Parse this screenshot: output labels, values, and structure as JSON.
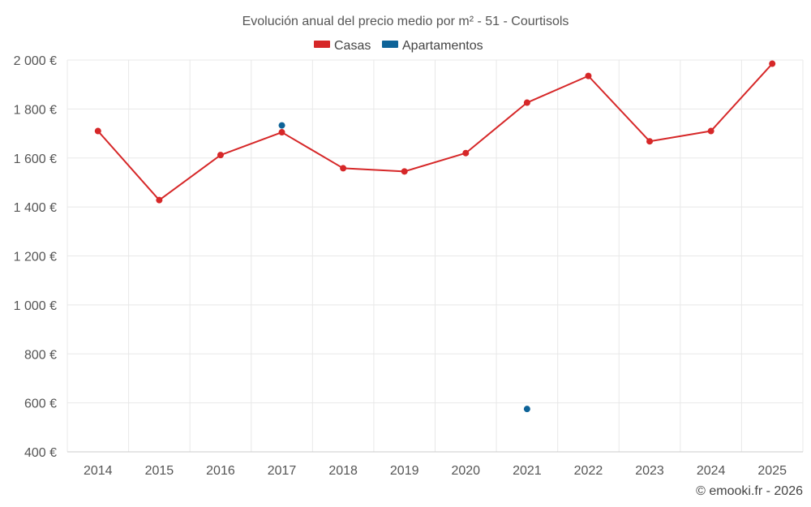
{
  "chart_data": {
    "type": "line",
    "title": "Evolución anual del precio medio por m² - 51 - Courtisols",
    "categories": [
      "2014",
      "2015",
      "2016",
      "2017",
      "2018",
      "2019",
      "2020",
      "2021",
      "2022",
      "2023",
      "2024",
      "2025"
    ],
    "series": [
      {
        "name": "Casas",
        "color": "#d62728",
        "values": [
          1710,
          1428,
          1612,
          1705,
          1558,
          1545,
          1620,
          1826,
          1935,
          1668,
          1710,
          1985
        ]
      },
      {
        "name": "Apartamentos",
        "color": "#0e6398",
        "values": [
          null,
          null,
          null,
          1733,
          null,
          null,
          null,
          575,
          null,
          null,
          null,
          null
        ]
      }
    ],
    "ylim": [
      400,
      2000
    ],
    "yticks": [
      400,
      600,
      800,
      1000,
      1200,
      1400,
      1600,
      1800,
      2000
    ],
    "ytick_labels": [
      "400 €",
      "600 €",
      "800 €",
      "1 000 €",
      "1 200 €",
      "1 400 €",
      "1 600 €",
      "1 800 €",
      "2 000 €"
    ],
    "grid": true,
    "legend_position": "top-center",
    "xlabel": "",
    "ylabel": ""
  },
  "credit": "© emooki.fr - 2026"
}
